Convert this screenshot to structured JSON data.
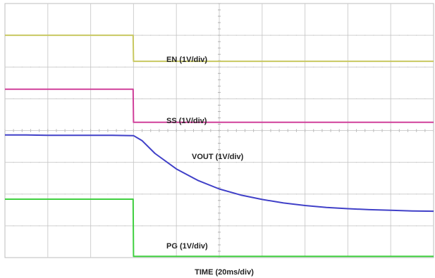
{
  "chart_data": {
    "type": "line",
    "title": "",
    "xlabel": "TIME (20ms/div)",
    "ylabel": "",
    "grid": true,
    "divisions": {
      "x": 10,
      "y": 8
    },
    "x_unit": "div",
    "xlim": [
      0,
      10
    ],
    "x": [
      0,
      0.5,
      1,
      1.5,
      2,
      2.5,
      2.99,
      3.0,
      3.2,
      3.5,
      4,
      4.5,
      5,
      5.5,
      6,
      6.5,
      7,
      7.5,
      8,
      8.5,
      9,
      9.5,
      10
    ],
    "series": [
      {
        "name": "EN (1V/div)",
        "color": "#c8c860",
        "values": [
          7.0,
          7.0,
          7.0,
          7.0,
          7.0,
          7.0,
          7.0,
          6.18,
          6.18,
          6.18,
          6.18,
          6.18,
          6.18,
          6.18,
          6.18,
          6.18,
          6.18,
          6.18,
          6.18,
          6.18,
          6.18,
          6.18,
          6.18
        ]
      },
      {
        "name": "SS (1V/div)",
        "color": "#d0409a",
        "values": [
          5.3,
          5.3,
          5.3,
          5.3,
          5.3,
          5.3,
          5.3,
          4.26,
          4.26,
          4.26,
          4.26,
          4.26,
          4.26,
          4.26,
          4.26,
          4.26,
          4.26,
          4.26,
          4.26,
          4.26,
          4.26,
          4.26,
          4.26
        ]
      },
      {
        "name": "VOUT (1V/div)",
        "color": "#4040c8",
        "values": [
          3.86,
          3.86,
          3.85,
          3.85,
          3.85,
          3.85,
          3.84,
          3.84,
          3.68,
          3.28,
          2.79,
          2.43,
          2.16,
          1.97,
          1.83,
          1.72,
          1.64,
          1.58,
          1.54,
          1.51,
          1.49,
          1.47,
          1.46
        ]
      },
      {
        "name": "PG (1V/div)",
        "color": "#40d040",
        "values": [
          1.84,
          1.84,
          1.84,
          1.84,
          1.84,
          1.84,
          1.84,
          0.04,
          0.04,
          0.04,
          0.04,
          0.04,
          0.04,
          0.04,
          0.04,
          0.04,
          0.04,
          0.04,
          0.04,
          0.04,
          0.04,
          0.04,
          0.04
        ]
      }
    ]
  }
}
